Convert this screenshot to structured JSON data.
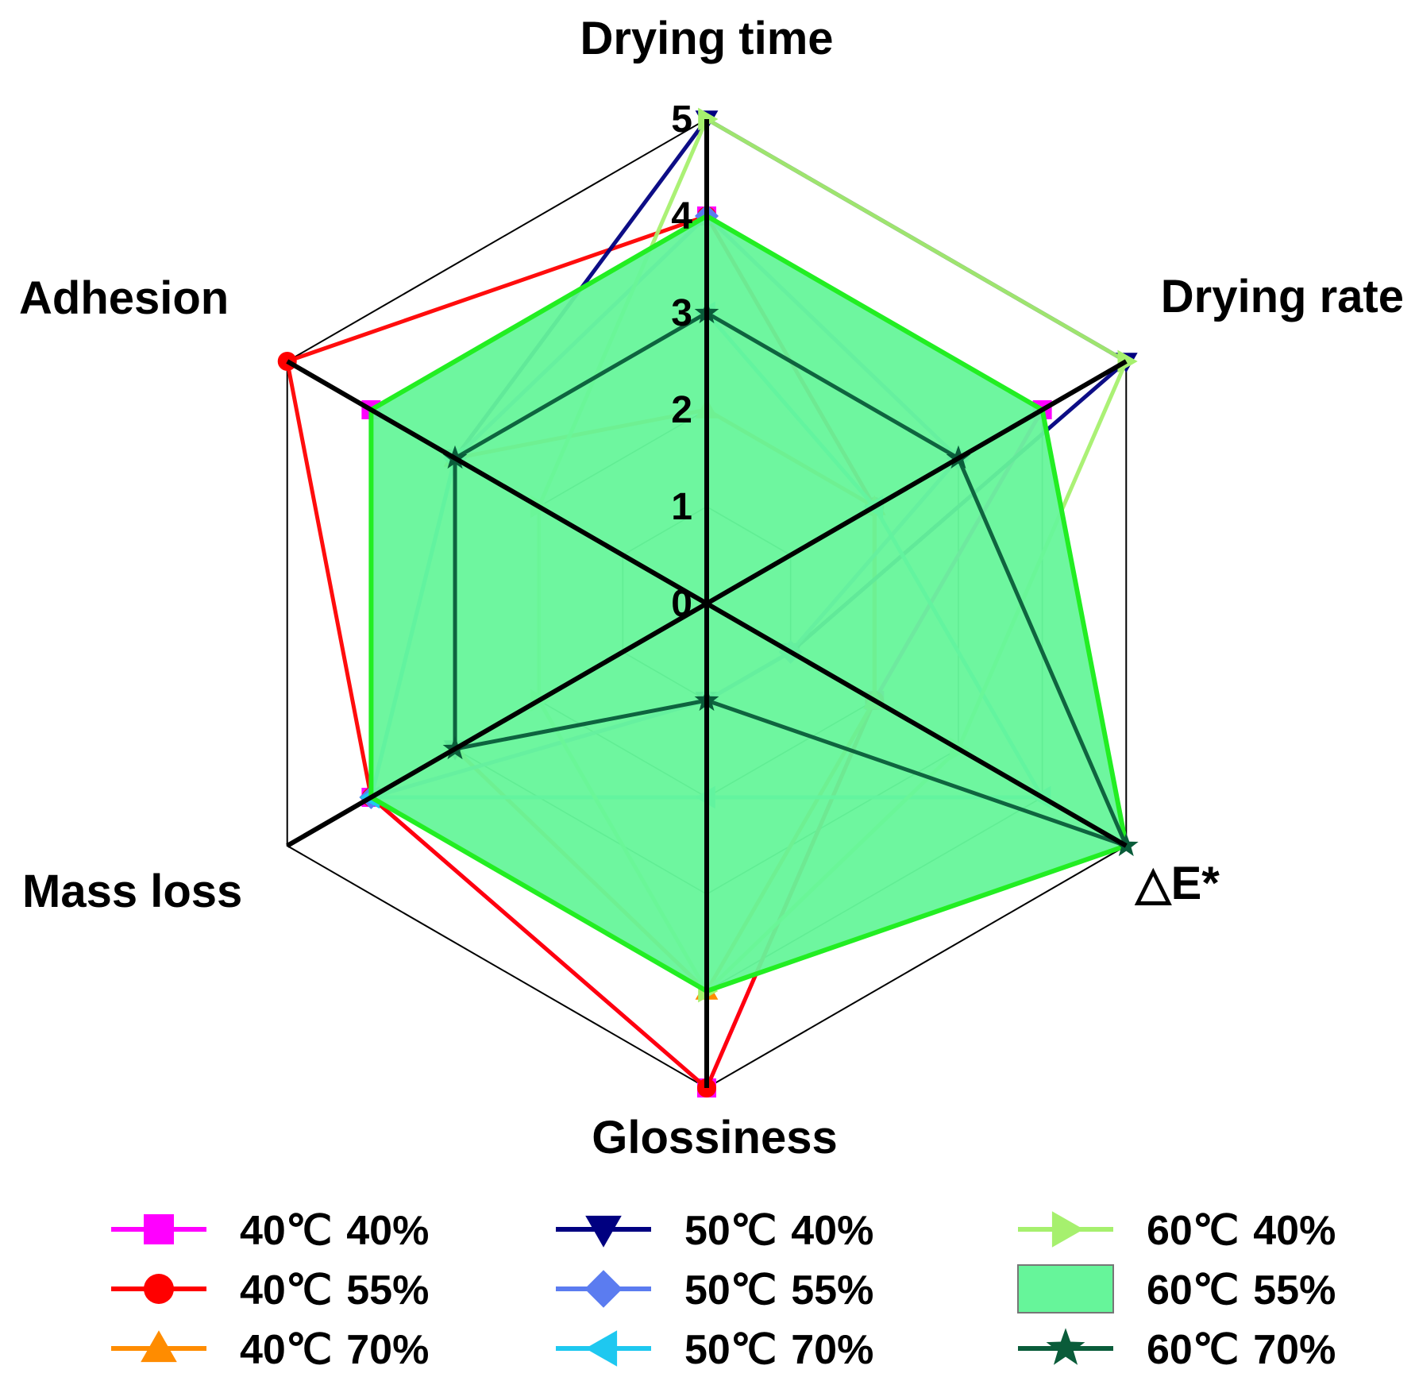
{
  "chart_data": {
    "type": "radar",
    "axes": [
      "Drying time",
      "Drying rate",
      "△E*",
      "Glossiness",
      "Mass loss",
      "Adhesion"
    ],
    "rlim": [
      0,
      5
    ],
    "ticks": [
      "0",
      "1",
      "2",
      "3",
      "4",
      "5"
    ],
    "series": [
      {
        "name": "40℃ 40%",
        "temp": "40℃",
        "rh": "40%",
        "color": "#ff00ff",
        "marker": "square",
        "values": [
          4,
          4,
          2,
          5,
          4,
          4
        ]
      },
      {
        "name": "40℃ 55%",
        "temp": "40℃",
        "rh": "55%",
        "color": "#ff0000",
        "marker": "circle",
        "values": [
          4,
          2,
          2,
          5,
          4,
          5
        ]
      },
      {
        "name": "40℃ 70%",
        "temp": "40℃",
        "rh": "70%",
        "color": "#ff8c00",
        "marker": "triangle-up",
        "values": [
          2,
          2,
          2,
          4,
          3,
          3
        ]
      },
      {
        "name": "50℃ 40%",
        "temp": "50℃",
        "rh": "40%",
        "color": "#000080",
        "marker": "triangle-down",
        "values": [
          5,
          5,
          1,
          1,
          3,
          3
        ]
      },
      {
        "name": "50℃ 55%",
        "temp": "50℃",
        "rh": "55%",
        "color": "#5b7cf0",
        "marker": "diamond",
        "values": [
          4,
          3,
          1,
          1,
          4,
          3
        ]
      },
      {
        "name": "50℃ 70%",
        "temp": "50℃",
        "rh": "70%",
        "color": "#1ec8f0",
        "marker": "triangle-left",
        "values": [
          3,
          2,
          4,
          2,
          4,
          3
        ]
      },
      {
        "name": "60℃ 40%",
        "temp": "60℃",
        "rh": "40%",
        "color": "#a6f06e",
        "marker": "triangle-right",
        "values": [
          5,
          5,
          3,
          4,
          2,
          2
        ]
      },
      {
        "name": "60℃ 55%",
        "temp": "60℃",
        "rh": "55%",
        "color": "#22ee22",
        "marker": "area",
        "fill": "#66f59a",
        "values": [
          4,
          4,
          5,
          4,
          4,
          4
        ]
      },
      {
        "name": "60℃ 70%",
        "temp": "60℃",
        "rh": "70%",
        "color": "#0a5c3a",
        "marker": "star",
        "values": [
          3,
          3,
          5,
          1,
          3,
          3
        ]
      }
    ]
  }
}
